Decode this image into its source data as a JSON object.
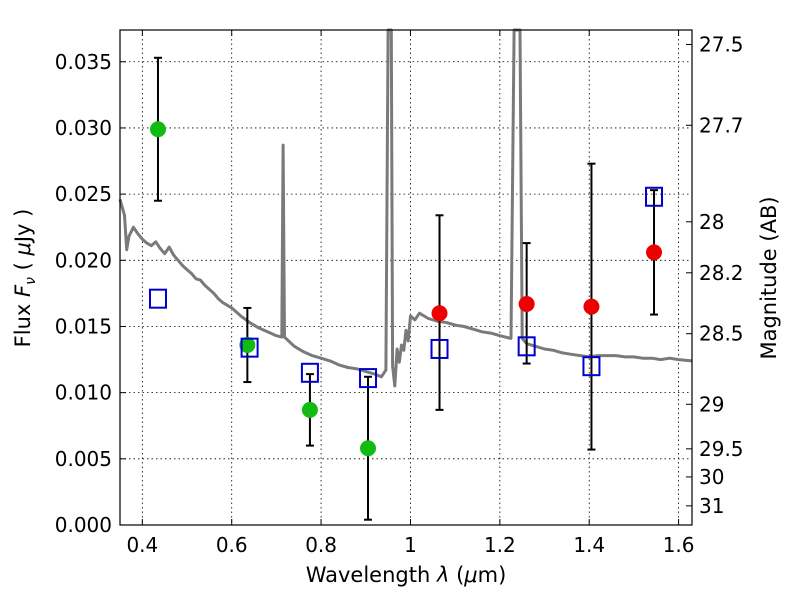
{
  "chart_data": {
    "type": "scatter",
    "xlabel": "Wavelength λ (μm)",
    "ylabel": "Flux F_ν (μJy)",
    "ylabel2": "Magnitude (AB)",
    "xlim": [
      0.35,
      1.63
    ],
    "ylim": [
      0.0,
      0.0374
    ],
    "grid": true,
    "x_ticks": [
      {
        "v": 0.4,
        "label": "0.4"
      },
      {
        "v": 0.6,
        "label": "0.6"
      },
      {
        "v": 0.8,
        "label": "0.8"
      },
      {
        "v": 1.0,
        "label": "1"
      },
      {
        "v": 1.2,
        "label": "1.2"
      },
      {
        "v": 1.4,
        "label": "1.4"
      },
      {
        "v": 1.6,
        "label": "1.6"
      }
    ],
    "y_ticks": [
      {
        "v": 0.0,
        "label": "0.000"
      },
      {
        "v": 0.005,
        "label": "0.005"
      },
      {
        "v": 0.01,
        "label": "0.010"
      },
      {
        "v": 0.015,
        "label": "0.015"
      },
      {
        "v": 0.02,
        "label": "0.020"
      },
      {
        "v": 0.025,
        "label": "0.025"
      },
      {
        "v": 0.03,
        "label": "0.030"
      },
      {
        "v": 0.035,
        "label": "0.035"
      }
    ],
    "mag_ticks": [
      {
        "mag": 27.5,
        "label": "27.5"
      },
      {
        "mag": 27.7,
        "label": "27.7"
      },
      {
        "mag": 28,
        "label": "28"
      },
      {
        "mag": 28.2,
        "label": "28.2"
      },
      {
        "mag": 28.5,
        "label": "28.5"
      },
      {
        "mag": 29,
        "label": "29"
      },
      {
        "mag": 29.5,
        "label": "29.5"
      },
      {
        "mag": 30,
        "label": "30"
      },
      {
        "mag": 31,
        "label": "31"
      }
    ],
    "colors": {
      "green": "#11bb11",
      "red": "#ee0000",
      "model": "#0000cc",
      "sed": "#7a7a7a",
      "error": "#000000"
    },
    "series": [
      {
        "marker": "circle",
        "color": "green",
        "points": [
          {
            "x": 0.435,
            "y": 0.0299,
            "lo": 0.0245,
            "hi": 0.0353
          },
          {
            "x": 0.635,
            "y": 0.0136,
            "lo": 0.0108,
            "hi": 0.0164
          },
          {
            "x": 0.775,
            "y": 0.0087,
            "lo": 0.006,
            "hi": 0.0114
          },
          {
            "x": 0.905,
            "y": 0.0058,
            "lo": 0.0004,
            "hi": 0.0112
          }
        ]
      },
      {
        "marker": "circle",
        "color": "red",
        "points": [
          {
            "x": 1.065,
            "y": 0.016,
            "lo": 0.0087,
            "hi": 0.0234
          },
          {
            "x": 1.26,
            "y": 0.0167,
            "lo": 0.0122,
            "hi": 0.0213
          },
          {
            "x": 1.405,
            "y": 0.0165,
            "lo": 0.0057,
            "hi": 0.0273
          },
          {
            "x": 1.545,
            "y": 0.0206,
            "lo": 0.0159,
            "hi": 0.0253
          }
        ]
      },
      {
        "marker": "open-square",
        "color": "model",
        "points": [
          {
            "x": 0.435,
            "y": 0.0171
          },
          {
            "x": 0.64,
            "y": 0.0134
          },
          {
            "x": 0.775,
            "y": 0.0115
          },
          {
            "x": 0.905,
            "y": 0.0111
          },
          {
            "x": 1.065,
            "y": 0.0133
          },
          {
            "x": 1.26,
            "y": 0.0135
          },
          {
            "x": 1.405,
            "y": 0.012
          },
          {
            "x": 1.545,
            "y": 0.0248
          }
        ]
      },
      {
        "type": "line",
        "color": "sed",
        "points": [
          [
            0.35,
            0.0246
          ],
          [
            0.36,
            0.0234
          ],
          [
            0.365,
            0.0208
          ],
          [
            0.37,
            0.0218
          ],
          [
            0.38,
            0.0225
          ],
          [
            0.39,
            0.022
          ],
          [
            0.4,
            0.0216
          ],
          [
            0.41,
            0.0213
          ],
          [
            0.42,
            0.0211
          ],
          [
            0.43,
            0.0214
          ],
          [
            0.44,
            0.0209
          ],
          [
            0.45,
            0.0205
          ],
          [
            0.46,
            0.021
          ],
          [
            0.47,
            0.0204
          ],
          [
            0.48,
            0.02
          ],
          [
            0.49,
            0.0196
          ],
          [
            0.5,
            0.0193
          ],
          [
            0.51,
            0.019
          ],
          [
            0.52,
            0.0186
          ],
          [
            0.53,
            0.0185
          ],
          [
            0.54,
            0.0181
          ],
          [
            0.55,
            0.0178
          ],
          [
            0.56,
            0.0175
          ],
          [
            0.57,
            0.0171
          ],
          [
            0.58,
            0.0168
          ],
          [
            0.59,
            0.0166
          ],
          [
            0.6,
            0.0164
          ],
          [
            0.62,
            0.0158
          ],
          [
            0.64,
            0.0153
          ],
          [
            0.66,
            0.0149
          ],
          [
            0.68,
            0.0146
          ],
          [
            0.7,
            0.0143
          ],
          [
            0.712,
            0.0142
          ],
          [
            0.715,
            0.0287
          ],
          [
            0.718,
            0.0142
          ],
          [
            0.74,
            0.0135
          ],
          [
            0.76,
            0.0131
          ],
          [
            0.78,
            0.0128
          ],
          [
            0.8,
            0.0126
          ],
          [
            0.82,
            0.0124
          ],
          [
            0.84,
            0.0121
          ],
          [
            0.86,
            0.0119
          ],
          [
            0.88,
            0.0118
          ],
          [
            0.9,
            0.0116
          ],
          [
            0.92,
            0.0114
          ],
          [
            0.935,
            0.0112
          ],
          [
            0.945,
            0.0117
          ],
          [
            0.95,
            0.0374
          ],
          [
            0.957,
            0.0374
          ],
          [
            0.96,
            0.012
          ],
          [
            0.965,
            0.0105
          ],
          [
            0.97,
            0.0133
          ],
          [
            0.975,
            0.0123
          ],
          [
            0.98,
            0.0136
          ],
          [
            0.985,
            0.0132
          ],
          [
            0.99,
            0.0147
          ],
          [
            0.995,
            0.0139
          ],
          [
            1.0,
            0.0158
          ],
          [
            1.01,
            0.0155
          ],
          [
            1.02,
            0.016
          ],
          [
            1.04,
            0.0156
          ],
          [
            1.06,
            0.0154
          ],
          [
            1.08,
            0.0153
          ],
          [
            1.1,
            0.0151
          ],
          [
            1.12,
            0.015
          ],
          [
            1.14,
            0.0148
          ],
          [
            1.16,
            0.0146
          ],
          [
            1.18,
            0.0145
          ],
          [
            1.2,
            0.0143
          ],
          [
            1.225,
            0.0141
          ],
          [
            1.232,
            0.0374
          ],
          [
            1.245,
            0.0374
          ],
          [
            1.25,
            0.0141
          ],
          [
            1.26,
            0.0137
          ],
          [
            1.28,
            0.0135
          ],
          [
            1.3,
            0.0133
          ],
          [
            1.32,
            0.0132
          ],
          [
            1.34,
            0.013
          ],
          [
            1.36,
            0.0129
          ],
          [
            1.38,
            0.0128
          ],
          [
            1.4,
            0.0127
          ],
          [
            1.42,
            0.0128
          ],
          [
            1.44,
            0.0128
          ],
          [
            1.46,
            0.0128
          ],
          [
            1.48,
            0.0127
          ],
          [
            1.5,
            0.0127
          ],
          [
            1.52,
            0.0126
          ],
          [
            1.54,
            0.0126
          ],
          [
            1.56,
            0.0125
          ],
          [
            1.58,
            0.0126
          ],
          [
            1.6,
            0.0125
          ],
          [
            1.63,
            0.0124
          ]
        ]
      }
    ]
  }
}
